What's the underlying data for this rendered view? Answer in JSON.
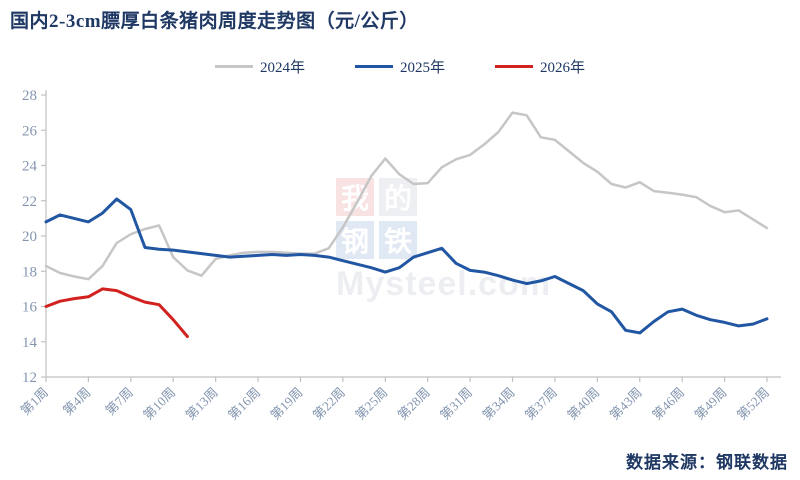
{
  "title": "国内2-3cm膘厚白条猪肉周度走势图（元/公斤）",
  "source": "数据来源：钢联数据",
  "legend": [
    {
      "label": "2024年",
      "color": "#c6c6c6"
    },
    {
      "label": "2025年",
      "color": "#2156a3"
    },
    {
      "label": "2026年",
      "color": "#d1221f"
    }
  ],
  "watermark": {
    "chars": [
      "我",
      "的",
      "钢",
      "铁"
    ],
    "tile_colors": [
      "#d93a3a",
      "#8a94a8",
      "#2b62b8",
      "#2b62b8"
    ],
    "text": "Mysteel.com"
  },
  "chart_data": {
    "type": "line",
    "title": "国内2-3cm膘厚白条猪肉周度走势图（元/公斤）",
    "xlabel": "",
    "ylabel": "",
    "ylim": [
      12,
      28
    ],
    "ytick_step": 2,
    "weeks_total": 52,
    "xtick_labels": [
      "第1周",
      "第4周",
      "第7周",
      "第10周",
      "第13周",
      "第16周",
      "第19周",
      "第22周",
      "第25周",
      "第28周",
      "第31周",
      "第34周",
      "第37周",
      "第40周",
      "第43周",
      "第46周",
      "第49周",
      "第52周"
    ],
    "xtick_week_interval": 3,
    "grid": false,
    "legend_position": "top",
    "axis_color": "#c0c0c0",
    "label_color": "#8496b0",
    "series": [
      {
        "name": "2024年",
        "color": "#c6c6c6",
        "line_width": 2.5,
        "start_week": 1,
        "values": [
          18.3,
          17.9,
          17.7,
          17.55,
          18.3,
          19.6,
          20.1,
          20.4,
          20.6,
          18.8,
          18.05,
          17.75,
          18.7,
          18.9,
          19.05,
          19.1,
          19.1,
          19.05,
          19.0,
          19.0,
          19.3,
          20.5,
          21.9,
          23.4,
          24.4,
          23.5,
          22.95,
          23.0,
          23.9,
          24.35,
          24.6,
          25.2,
          25.9,
          27.0,
          26.85,
          25.6,
          25.45,
          24.8,
          24.15,
          23.65,
          22.95,
          22.75,
          23.05,
          22.55,
          22.45,
          22.35,
          22.2,
          21.7,
          21.35,
          21.45,
          20.95,
          20.45
        ]
      },
      {
        "name": "2025年",
        "color": "#2156a3",
        "line_width": 3,
        "start_week": 1,
        "values": [
          20.8,
          21.2,
          21.0,
          20.8,
          21.3,
          22.1,
          21.5,
          19.35,
          19.25,
          19.2,
          19.1,
          19.0,
          18.9,
          18.8,
          18.85,
          18.9,
          18.95,
          18.9,
          18.95,
          18.9,
          18.8,
          18.6,
          18.4,
          18.2,
          17.95,
          18.2,
          18.8,
          19.05,
          19.3,
          18.45,
          18.05,
          17.95,
          17.75,
          17.5,
          17.3,
          17.45,
          17.7,
          17.3,
          16.9,
          16.15,
          15.7,
          14.65,
          14.5,
          15.15,
          15.7,
          15.85,
          15.5,
          15.25,
          15.1,
          14.9,
          15.0,
          15.3
        ]
      },
      {
        "name": "2026年",
        "color": "#d1221f",
        "line_width": 3,
        "start_week": 1,
        "values": [
          16.0,
          16.3,
          16.45,
          16.55,
          17.0,
          16.9,
          16.55,
          16.25,
          16.1,
          15.25,
          14.3
        ]
      }
    ]
  }
}
